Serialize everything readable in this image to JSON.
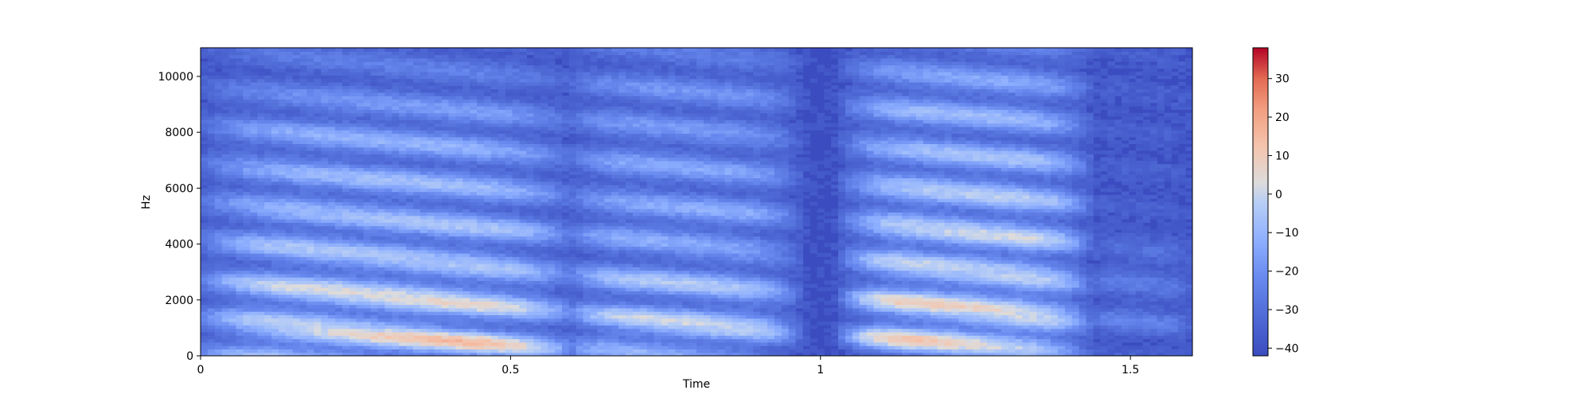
{
  "chart_data": {
    "type": "heatmap",
    "subtype": "spectrogram",
    "title": "",
    "xlabel": "Time",
    "ylabel": "Hz",
    "xlim": [
      0,
      1.6
    ],
    "ylim": [
      0,
      11025
    ],
    "x_ticks": [
      0,
      0.5,
      1,
      1.5
    ],
    "x_tick_labels": [
      "0",
      "0.5",
      "1",
      "1.5"
    ],
    "y_ticks": [
      0,
      2000,
      4000,
      6000,
      8000,
      10000
    ],
    "y_tick_labels": [
      "0",
      "2000",
      "4000",
      "6000",
      "8000",
      "10000"
    ],
    "colorbar": {
      "label": "",
      "range": [
        -42,
        38
      ],
      "ticks": [
        -40,
        -30,
        -20,
        -10,
        0,
        10,
        20,
        30
      ],
      "tick_labels": [
        "−40",
        "−30",
        "−20",
        "−10",
        "0",
        "10",
        "20",
        "30"
      ],
      "colormap": "coolwarm"
    },
    "floor_db": -40,
    "segments": [
      {
        "t_start": 0.0,
        "t_end": 0.6,
        "peak_db": 18,
        "formants_hz": [
          450,
          1700,
          2600,
          4300,
          6000,
          7700
        ]
      },
      {
        "t_start": 0.6,
        "t_end": 0.95,
        "peak_db": 8,
        "formants_hz": [
          700,
          1400,
          2600,
          4800,
          6800,
          8800
        ]
      },
      {
        "t_start": 1.05,
        "t_end": 1.42,
        "peak_db": 25,
        "formants_hz": [
          900,
          2200,
          3900,
          5300,
          6700,
          8800
        ]
      },
      {
        "t_start": 1.45,
        "t_end": 1.58,
        "peak_db": -20,
        "formants_hz": [
          1500,
          3000
        ]
      }
    ]
  }
}
